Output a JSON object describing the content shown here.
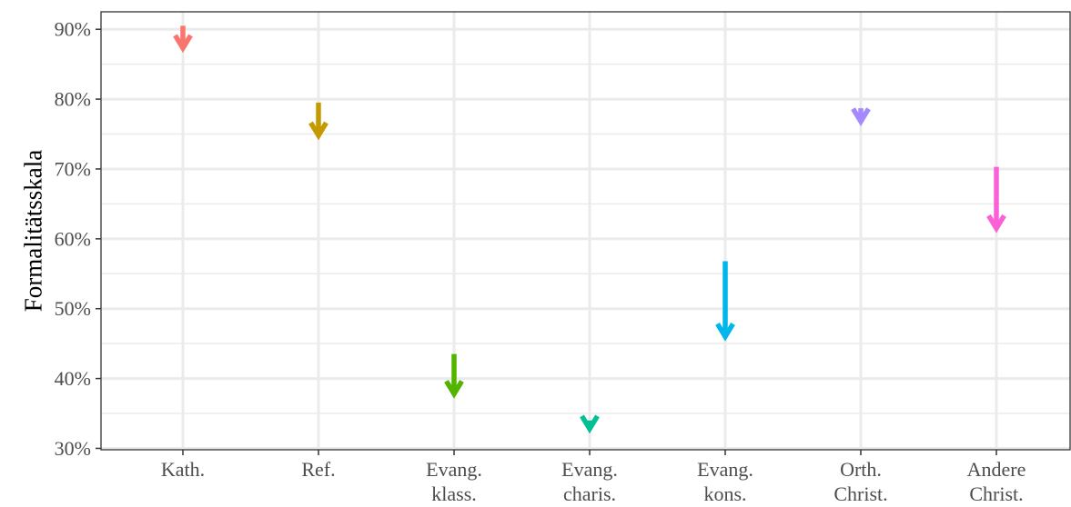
{
  "chart_data": {
    "type": "arrow",
    "xlabel": "",
    "ylabel": "Formalitätsskala",
    "ylim": [
      29.8,
      92.5
    ],
    "yticks": [
      30,
      40,
      50,
      60,
      70,
      80,
      90
    ],
    "ytick_labels": [
      "30%",
      "40%",
      "50%",
      "60%",
      "70%",
      "80%",
      "90%"
    ],
    "categories": [
      [
        "Kath."
      ],
      [
        "Ref."
      ],
      [
        "Evang.",
        "klass."
      ],
      [
        "Evang.",
        "charis."
      ],
      [
        "Evang.",
        "kons."
      ],
      [
        "Orth.",
        "Christ."
      ],
      [
        "Andere",
        "Christ."
      ]
    ],
    "series": [
      {
        "start": 90.5,
        "end": 87.3,
        "color": "#f8766d"
      },
      {
        "start": 79.5,
        "end": 74.8,
        "color": "#c49a00"
      },
      {
        "start": 43.5,
        "end": 37.8,
        "color": "#53b400"
      },
      {
        "start": 34.0,
        "end": 32.8,
        "color": "#00c094"
      },
      {
        "start": 56.8,
        "end": 46.0,
        "color": "#00b6eb"
      },
      {
        "start": 78.7,
        "end": 76.8,
        "color": "#a58aff"
      },
      {
        "start": 70.3,
        "end": 61.5,
        "color": "#fb61d7"
      }
    ],
    "grid": true,
    "legend": "none"
  }
}
